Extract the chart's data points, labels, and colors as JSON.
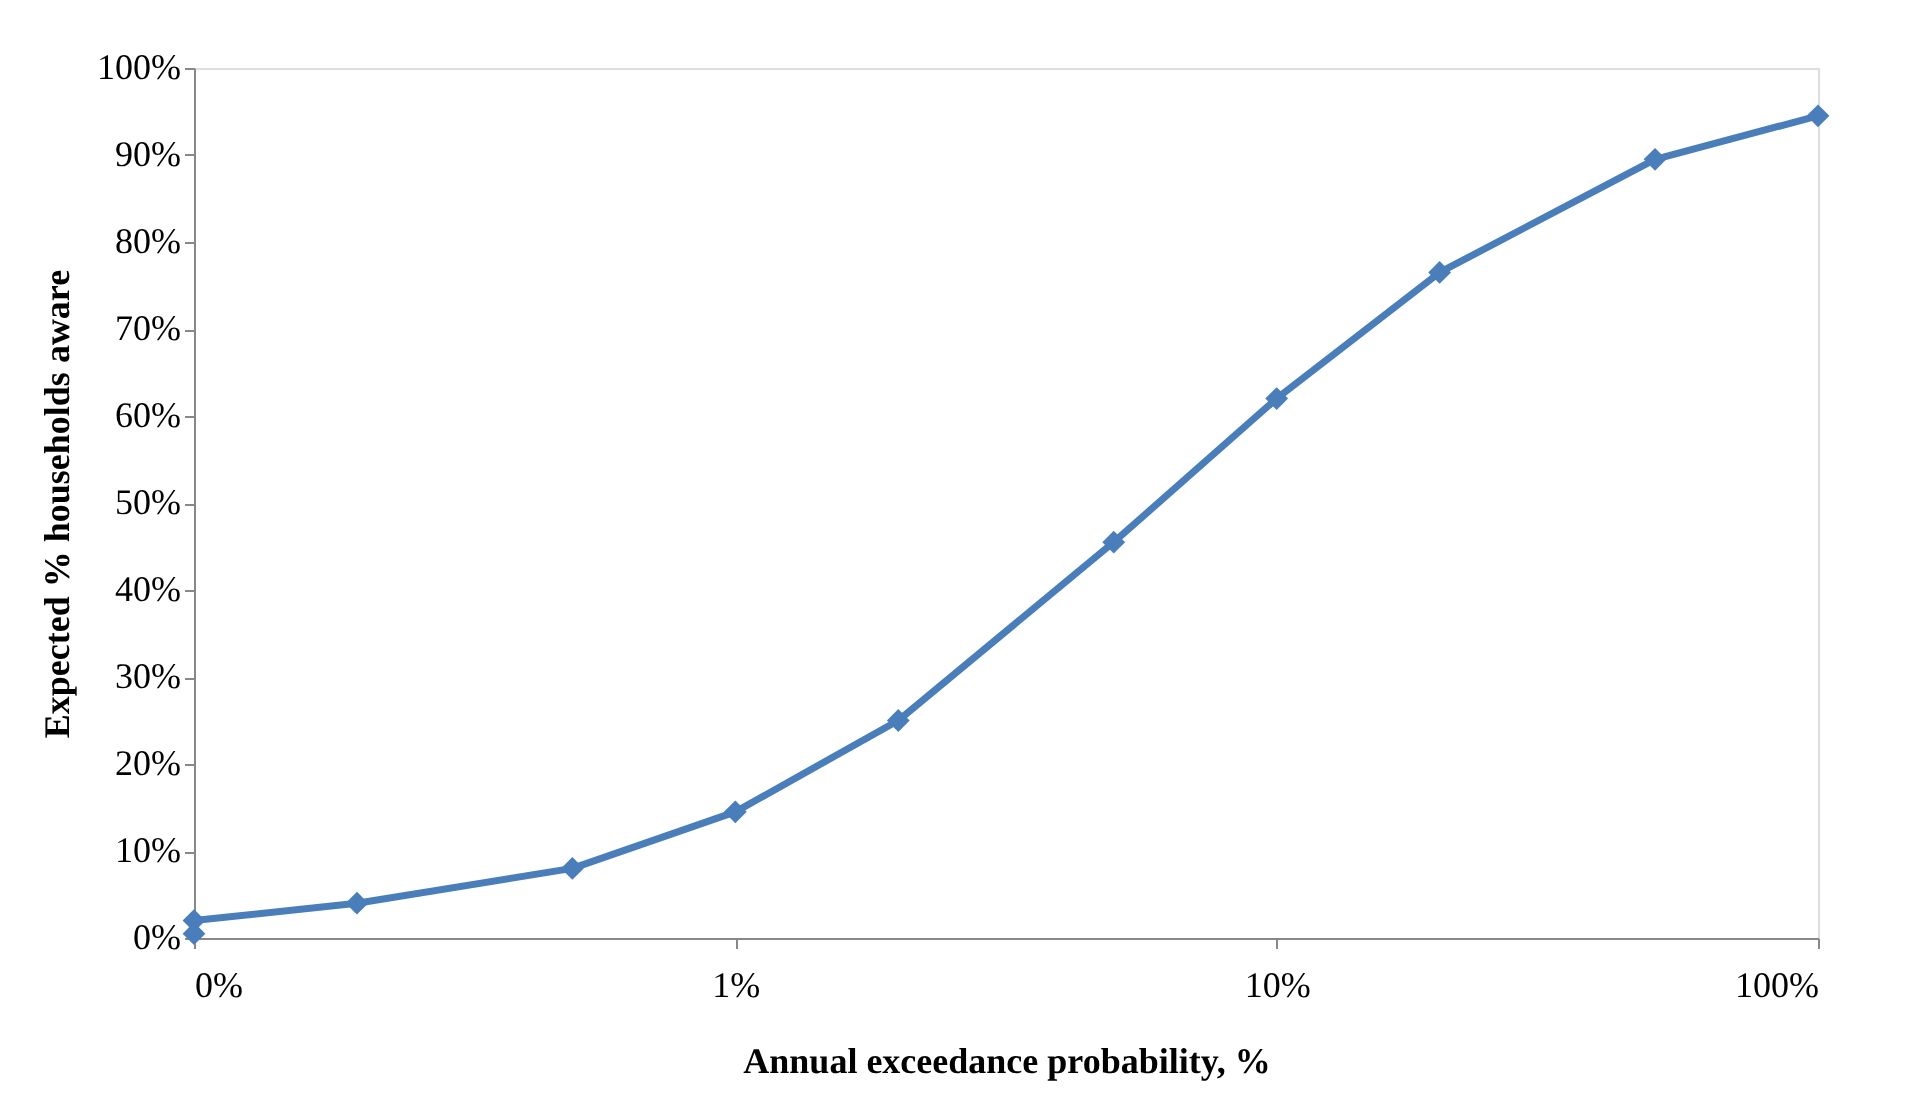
{
  "chart_data": {
    "type": "line",
    "xlabel": "Annual exceedance probability, %",
    "ylabel": "Expected % households aware",
    "log": "x",
    "x": [
      0.1,
      0.1,
      0.2,
      0.5,
      1,
      2,
      5,
      10,
      20,
      50,
      100
    ],
    "series": [
      {
        "color": "#4a7ebb",
        "values": [
          0.5,
          2,
          4,
          8,
          14.5,
          25,
          45.5,
          62,
          76.5,
          89.5,
          94.5
        ]
      }
    ],
    "xlim": [
      0.1,
      100
    ],
    "xticks": [
      {
        "value": 0.1,
        "label": "0%"
      },
      {
        "value": 1,
        "label": "1%"
      },
      {
        "value": 10,
        "label": "10%"
      },
      {
        "value": 100,
        "label": "100%"
      }
    ],
    "ylim": [
      0,
      100
    ],
    "yticks": [
      {
        "value": 0,
        "label": "0%"
      },
      {
        "value": 10,
        "label": "10%"
      },
      {
        "value": 20,
        "label": "20%"
      },
      {
        "value": 30,
        "label": "30%"
      },
      {
        "value": 40,
        "label": "40%"
      },
      {
        "value": 50,
        "label": "50%"
      },
      {
        "value": 60,
        "label": "60%"
      },
      {
        "value": 70,
        "label": "70%"
      },
      {
        "value": 80,
        "label": "80%"
      },
      {
        "value": 90,
        "label": "90%"
      },
      {
        "value": 100,
        "label": "100%"
      }
    ],
    "grid": false,
    "marker": "diamond",
    "line_style": "solid"
  }
}
